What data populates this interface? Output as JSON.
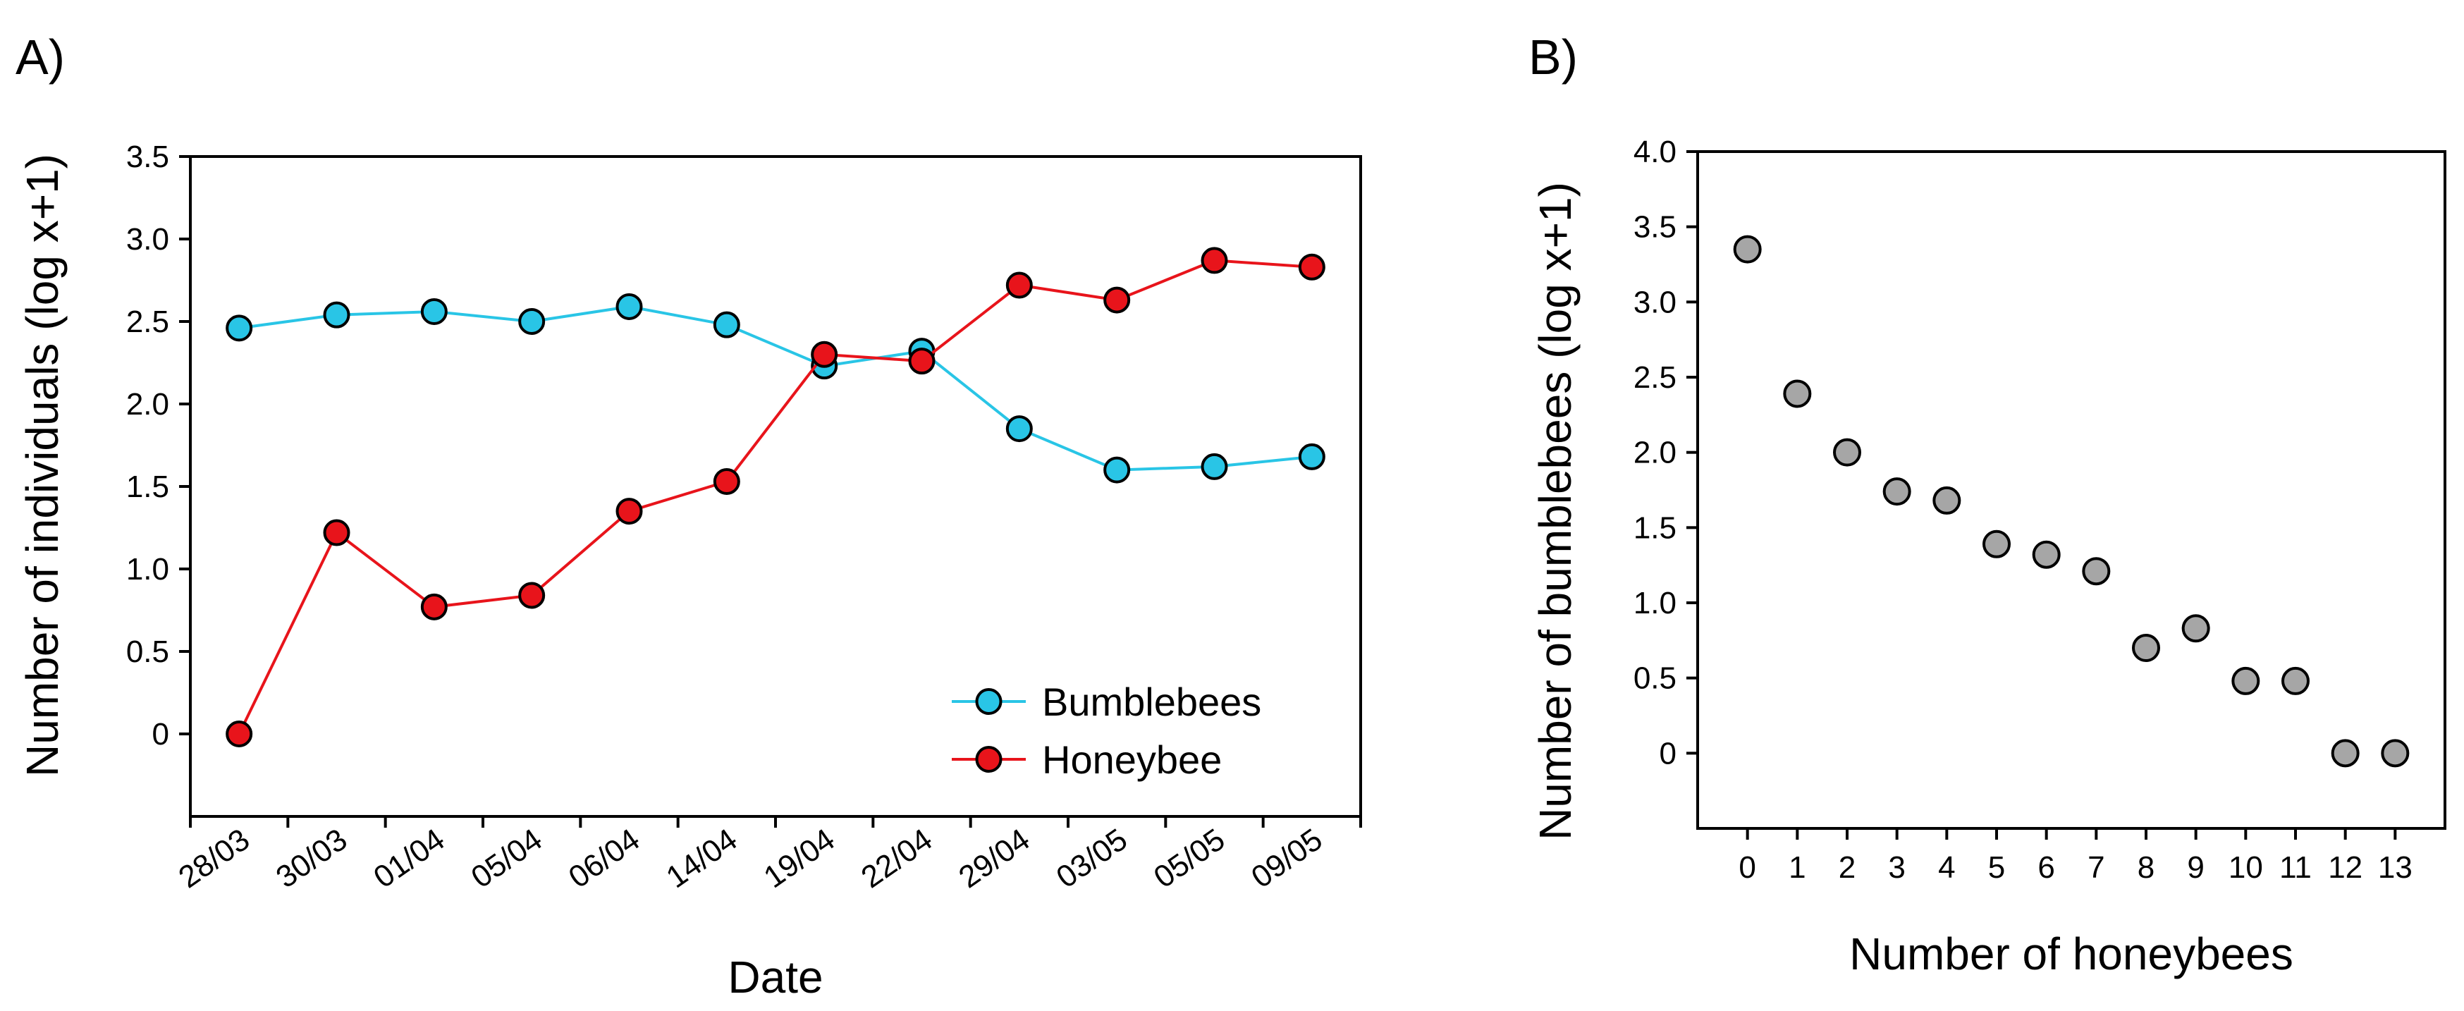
{
  "chart_data": [
    {
      "type": "line",
      "panel_label": "A)",
      "title": "",
      "xlabel": "Date",
      "ylabel": "Number of individuals (log x+1)",
      "categories": [
        "28/03",
        "30/03",
        "01/04",
        "05/04",
        "06/04",
        "14/04",
        "19/04",
        "22/04",
        "29/04",
        "03/05",
        "05/05",
        "09/05"
      ],
      "ylim": [
        -0.5,
        3.5
      ],
      "yticks": [
        0,
        0.5,
        1.0,
        1.5,
        2.0,
        2.5,
        3.0,
        3.5
      ],
      "ytick_labels": [
        "0",
        "0.5",
        "1.0",
        "1.5",
        "2.0",
        "2.5",
        "3.0",
        "3.5"
      ],
      "legend_position": "lower-right",
      "series": [
        {
          "name": "Bumblebees",
          "color": "#29c5e6",
          "values": [
            2.46,
            2.54,
            2.56,
            2.5,
            2.59,
            2.48,
            2.23,
            2.32,
            1.85,
            1.6,
            1.62,
            1.68
          ]
        },
        {
          "name": "Honeybee",
          "color": "#e8141b",
          "values": [
            0.0,
            1.22,
            0.77,
            0.84,
            1.35,
            1.53,
            2.3,
            2.26,
            2.72,
            2.63,
            2.87,
            2.83
          ]
        }
      ]
    },
    {
      "type": "scatter",
      "panel_label": "B)",
      "title": "",
      "xlabel": "Number of honeybees",
      "ylabel": "Number of bumblebees (log x+1)",
      "x": [
        0,
        1,
        2,
        3,
        4,
        5,
        6,
        7,
        8,
        9,
        10,
        11,
        12,
        13
      ],
      "y": [
        3.35,
        2.39,
        2.0,
        1.74,
        1.68,
        1.39,
        1.32,
        1.21,
        0.7,
        0.83,
        0.48,
        0.48,
        0.0,
        0.0
      ],
      "xlim": [
        -1,
        14
      ],
      "ylim": [
        -0.5,
        4.0
      ],
      "xticks": [
        0,
        1,
        2,
        3,
        4,
        5,
        6,
        7,
        8,
        9,
        10,
        11,
        12,
        13
      ],
      "xtick_labels": [
        "0",
        "1",
        "2",
        "3",
        "4",
        "5",
        "6",
        "7",
        "8",
        "9",
        "10",
        "11",
        "12",
        "13"
      ],
      "yticks": [
        0,
        0.5,
        1.0,
        1.5,
        2.0,
        2.5,
        3.0,
        3.5,
        4.0
      ],
      "ytick_labels": [
        "0",
        "0.5",
        "1.0",
        "1.5",
        "2.0",
        "2.5",
        "3.0",
        "3.5",
        "4.0"
      ],
      "marker_color": "#a6a6a6"
    }
  ]
}
